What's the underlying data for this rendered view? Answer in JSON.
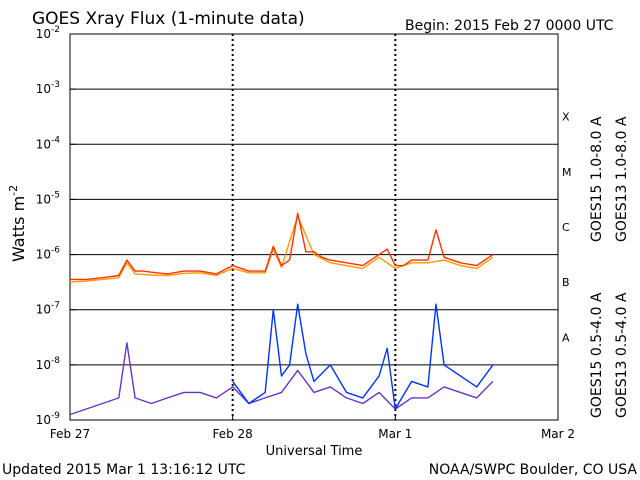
{
  "chart_data": {
    "type": "line",
    "title": "GOES Xray Flux (1-minute data)",
    "begin_label": "Begin:  2015 Feb 27 0000 UTC",
    "ylabel_main": "Watts m",
    "ylabel_sup": "-2",
    "xlabel": "Universal Time",
    "y_scale": "log",
    "ylim": [
      1e-09,
      0.01
    ],
    "xlim": [
      0,
      3
    ],
    "y_ticks": [
      {
        "mant": "10",
        "exp": "-9",
        "value": -9
      },
      {
        "mant": "10",
        "exp": "-8",
        "value": -8
      },
      {
        "mant": "10",
        "exp": "-7",
        "value": -7
      },
      {
        "mant": "10",
        "exp": "-6",
        "value": -6
      },
      {
        "mant": "10",
        "exp": "-5",
        "value": -5
      },
      {
        "mant": "10",
        "exp": "-4",
        "value": -4
      },
      {
        "mant": "10",
        "exp": "-3",
        "value": -3
      },
      {
        "mant": "10",
        "exp": "-2",
        "value": -2
      }
    ],
    "x_ticks": [
      {
        "label": "Feb 27",
        "value": 0
      },
      {
        "label": "Feb 28",
        "value": 1
      },
      {
        "label": "Mar 1",
        "value": 2
      },
      {
        "label": "Mar 2",
        "value": 3
      }
    ],
    "flare_classes": [
      {
        "label": "A",
        "value": -7.5
      },
      {
        "label": "B",
        "value": -6.5
      },
      {
        "label": "C",
        "value": -5.5
      },
      {
        "label": "M",
        "value": -4.5
      },
      {
        "label": "X",
        "value": -3.5
      }
    ],
    "grid": true,
    "series": [
      {
        "name": "GOES15 1.0-8.0 A",
        "color": "#ff3300",
        "x": [
          0.0,
          0.1,
          0.2,
          0.3,
          0.35,
          0.4,
          0.45,
          0.5,
          0.6,
          0.7,
          0.8,
          0.9,
          1.0,
          1.1,
          1.2,
          1.25,
          1.3,
          1.35,
          1.4,
          1.45,
          1.5,
          1.55,
          1.6,
          1.7,
          1.8,
          1.9,
          1.95,
          2.0,
          2.05,
          2.1,
          2.2,
          2.25,
          2.3,
          2.4,
          2.5,
          2.6
        ],
        "y": [
          -6.45,
          -6.45,
          -6.42,
          -6.38,
          -6.1,
          -6.3,
          -6.3,
          -6.32,
          -6.35,
          -6.3,
          -6.3,
          -6.35,
          -6.2,
          -6.3,
          -6.3,
          -5.85,
          -6.2,
          -6.1,
          -5.25,
          -5.95,
          -5.95,
          -6.05,
          -6.1,
          -6.15,
          -6.2,
          -6.0,
          -5.9,
          -6.2,
          -6.2,
          -6.1,
          -6.1,
          -5.55,
          -6.05,
          -6.15,
          -6.2,
          -6.0
        ]
      },
      {
        "name": "GOES13 1.0-8.0 A",
        "color": "#ff9900",
        "x": [
          0.0,
          0.1,
          0.2,
          0.3,
          0.35,
          0.4,
          0.5,
          0.6,
          0.7,
          0.8,
          0.9,
          1.0,
          1.1,
          1.2,
          1.25,
          1.3,
          1.4,
          1.5,
          1.6,
          1.7,
          1.8,
          1.9,
          2.0,
          2.1,
          2.2,
          2.3,
          2.4,
          2.5,
          2.6
        ],
        "y": [
          -6.5,
          -6.48,
          -6.45,
          -6.42,
          -6.15,
          -6.35,
          -6.37,
          -6.38,
          -6.34,
          -6.33,
          -6.38,
          -6.25,
          -6.33,
          -6.33,
          -5.9,
          -6.23,
          -5.3,
          -6.0,
          -6.15,
          -6.2,
          -6.25,
          -6.05,
          -6.25,
          -6.15,
          -6.15,
          -6.1,
          -6.2,
          -6.25,
          -6.05
        ]
      },
      {
        "name": "GOES15 0.5-4.0 A",
        "color": "#0033ff",
        "x": [
          1.0,
          1.1,
          1.2,
          1.25,
          1.3,
          1.35,
          1.4,
          1.45,
          1.5,
          1.6,
          1.7,
          1.8,
          1.9,
          1.95,
          2.0,
          2.1,
          2.2,
          2.25,
          2.3,
          2.4,
          2.5,
          2.6
        ],
        "y": [
          -8.3,
          -8.7,
          -8.5,
          -7.0,
          -8.2,
          -8.0,
          -6.9,
          -7.8,
          -8.3,
          -8.0,
          -8.5,
          -8.6,
          -8.2,
          -7.7,
          -8.8,
          -8.3,
          -8.4,
          -6.9,
          -8.0,
          -8.2,
          -8.4,
          -8.0
        ]
      },
      {
        "name": "GOES13 0.5-4.0 A",
        "color": "#6633cc",
        "x": [
          0.0,
          0.1,
          0.2,
          0.3,
          0.35,
          0.4,
          0.5,
          0.6,
          0.7,
          0.8,
          0.9,
          1.0,
          1.1,
          1.2,
          1.3,
          1.4,
          1.5,
          1.6,
          1.7,
          1.8,
          1.9,
          2.0,
          2.1,
          2.2,
          2.3,
          2.4,
          2.5,
          2.6
        ],
        "y": [
          -8.9,
          -8.8,
          -8.7,
          -8.6,
          -7.6,
          -8.6,
          -8.7,
          -8.6,
          -8.5,
          -8.5,
          -8.6,
          -8.4,
          -8.7,
          -8.6,
          -8.5,
          -8.1,
          -8.5,
          -8.4,
          -8.6,
          -8.7,
          -8.5,
          -8.8,
          -8.6,
          -8.6,
          -8.4,
          -8.5,
          -8.6,
          -8.3
        ]
      }
    ]
  },
  "footer": {
    "updated": "Updated 2015 Mar  1 13:16:12 UTC",
    "credit": "NOAA/SWPC Boulder, CO USA"
  }
}
